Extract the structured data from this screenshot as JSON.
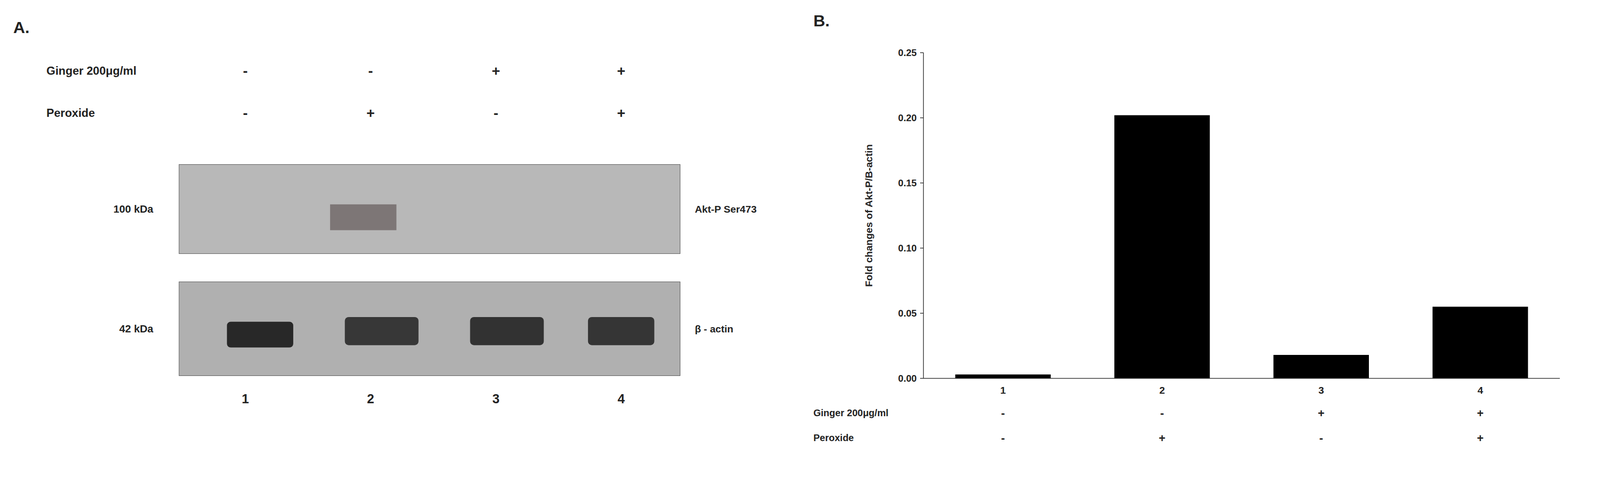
{
  "chart_data": [
    {
      "type": "blot",
      "title": "A.",
      "categories": [
        "1",
        "2",
        "3",
        "4"
      ],
      "annotations": [
        {
          "name": "Ginger 200μg/ml",
          "labels": [
            "-",
            "-",
            "+",
            "+"
          ]
        },
        {
          "name": "Peroxide",
          "labels": [
            "-",
            "+",
            "-",
            "+"
          ]
        }
      ],
      "series": [
        {
          "name": "Akt-P Ser473",
          "label": "100 kDa"
        },
        {
          "name": "β - actin",
          "label": "42 kDa"
        }
      ]
    },
    {
      "type": "bar",
      "title": "B.",
      "categories": [
        "1",
        "2",
        "3",
        "4"
      ],
      "values": [
        0.003,
        0.202,
        0.018,
        0.055
      ],
      "color": "#000000",
      "ylabel": "Fold changes of Akt-P/B-actin",
      "ylim": [
        0,
        0.25
      ],
      "yticks": [
        {
          "value": 0.0,
          "label": "0.00"
        },
        0.05,
        {
          "value": 0.1,
          "label": "0.10"
        },
        0.15,
        {
          "value": 0.2,
          "label": "0.20"
        },
        0.25
      ],
      "grid": false,
      "annotations": [
        {
          "name": "Ginger 200μg/ml",
          "labels": [
            "-",
            "-",
            "+",
            "+"
          ]
        },
        {
          "name": "Peroxide",
          "labels": [
            "-",
            "+",
            "-",
            "+"
          ]
        }
      ]
    }
  ]
}
